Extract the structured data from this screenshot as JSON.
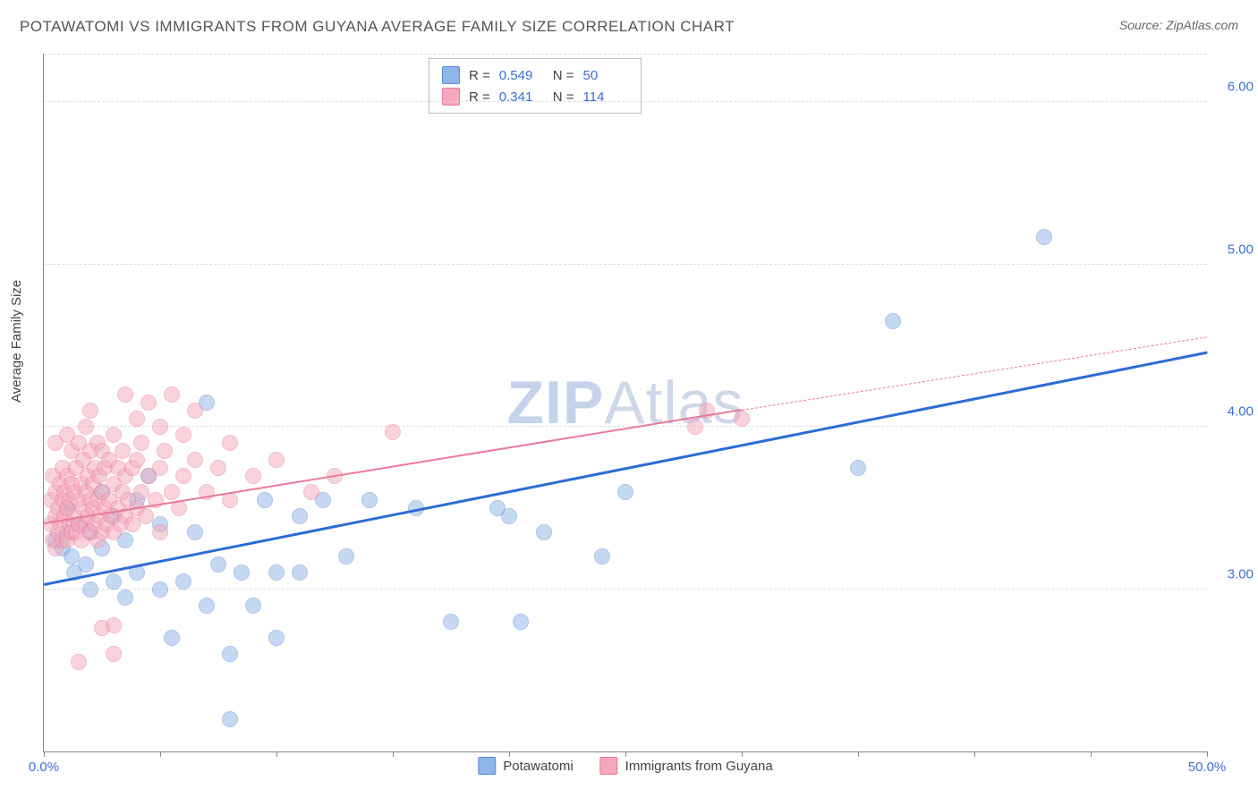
{
  "title": "POTAWATOMI VS IMMIGRANTS FROM GUYANA AVERAGE FAMILY SIZE CORRELATION CHART",
  "source_prefix": "Source: ",
  "source": "ZipAtlas.com",
  "ylabel": "Average Family Size",
  "watermark_bold": "ZIP",
  "watermark_rest": "Atlas",
  "chart": {
    "type": "scatter",
    "xlim": [
      0,
      50
    ],
    "ylim": [
      2.0,
      6.3
    ],
    "x_ticks": [
      0,
      5,
      10,
      15,
      20,
      25,
      30,
      35,
      40,
      45,
      50
    ],
    "x_tick_label_map": {
      "0": "0.0%",
      "50": "50.0%"
    },
    "y_grid": [
      3.0,
      4.0,
      5.0,
      6.0
    ],
    "y_tick_labels": [
      "3.00",
      "4.00",
      "5.00",
      "6.00"
    ],
    "background_color": "#ffffff",
    "grid_color": "#dddddd",
    "axis_label_color": "#3b6fd6",
    "point_radius": 8,
    "point_opacity": 0.5,
    "series": [
      {
        "name": "Potawatomi",
        "color_fill": "#8fb4e8",
        "color_stroke": "#5a8cd8",
        "R": "0.549",
        "N": "50",
        "trend": {
          "x1": 0,
          "y1": 3.02,
          "x2": 50,
          "y2": 4.45,
          "color": "#2d6cd6",
          "width": 2.5
        },
        "points": [
          [
            0.5,
            3.3
          ],
          [
            0.8,
            3.25
          ],
          [
            1.0,
            3.35
          ],
          [
            1.0,
            3.5
          ],
          [
            1.2,
            3.2
          ],
          [
            1.3,
            3.1
          ],
          [
            1.5,
            3.4
          ],
          [
            1.8,
            3.15
          ],
          [
            2.0,
            3.0
          ],
          [
            2.0,
            3.35
          ],
          [
            2.5,
            3.25
          ],
          [
            2.5,
            3.6
          ],
          [
            3.0,
            3.05
          ],
          [
            3.0,
            3.45
          ],
          [
            3.5,
            3.3
          ],
          [
            3.5,
            2.95
          ],
          [
            4.0,
            3.1
          ],
          [
            4.0,
            3.55
          ],
          [
            4.5,
            3.7
          ],
          [
            5.0,
            3.0
          ],
          [
            5.0,
            3.4
          ],
          [
            5.5,
            2.7
          ],
          [
            6.0,
            3.05
          ],
          [
            6.5,
            3.35
          ],
          [
            7.0,
            2.9
          ],
          [
            7.0,
            4.15
          ],
          [
            7.5,
            3.15
          ],
          [
            8.0,
            2.6
          ],
          [
            8.0,
            2.2
          ],
          [
            8.5,
            3.1
          ],
          [
            9.0,
            2.9
          ],
          [
            9.5,
            3.55
          ],
          [
            10.0,
            2.7
          ],
          [
            10.0,
            3.1
          ],
          [
            11.0,
            3.45
          ],
          [
            11.0,
            3.1
          ],
          [
            12.0,
            3.55
          ],
          [
            13.0,
            3.2
          ],
          [
            14.0,
            3.55
          ],
          [
            16.0,
            3.5
          ],
          [
            17.5,
            2.8
          ],
          [
            19.5,
            3.5
          ],
          [
            20.0,
            3.45
          ],
          [
            20.5,
            2.8
          ],
          [
            21.5,
            3.35
          ],
          [
            24.0,
            3.2
          ],
          [
            25.0,
            3.6
          ],
          [
            35.0,
            3.75
          ],
          [
            36.5,
            4.65
          ],
          [
            43.0,
            5.17
          ]
        ]
      },
      {
        "name": "Immigrants from Guyana",
        "color_fill": "#f5a8bb",
        "color_stroke": "#ea7a99",
        "R": "0.341",
        "N": "114",
        "trend_solid": {
          "x1": 0,
          "y1": 3.4,
          "x2": 30,
          "y2": 4.1,
          "color": "#ea7a99",
          "width": 2
        },
        "trend_dash": {
          "x1": 30,
          "y1": 4.1,
          "x2": 50,
          "y2": 4.55,
          "color": "#ea7a99"
        },
        "points": [
          [
            0.3,
            3.4
          ],
          [
            0.3,
            3.55
          ],
          [
            0.4,
            3.3
          ],
          [
            0.4,
            3.7
          ],
          [
            0.5,
            3.25
          ],
          [
            0.5,
            3.45
          ],
          [
            0.5,
            3.6
          ],
          [
            0.5,
            3.9
          ],
          [
            0.6,
            3.35
          ],
          [
            0.6,
            3.5
          ],
          [
            0.7,
            3.4
          ],
          [
            0.7,
            3.65
          ],
          [
            0.8,
            3.3
          ],
          [
            0.8,
            3.55
          ],
          [
            0.8,
            3.75
          ],
          [
            0.9,
            3.45
          ],
          [
            0.9,
            3.6
          ],
          [
            1.0,
            3.3
          ],
          [
            1.0,
            3.5
          ],
          [
            1.0,
            3.7
          ],
          [
            1.0,
            3.95
          ],
          [
            1.1,
            3.4
          ],
          [
            1.1,
            3.55
          ],
          [
            1.2,
            3.35
          ],
          [
            1.2,
            3.65
          ],
          [
            1.2,
            3.85
          ],
          [
            1.3,
            3.45
          ],
          [
            1.3,
            3.6
          ],
          [
            1.4,
            3.35
          ],
          [
            1.4,
            3.75
          ],
          [
            1.5,
            3.4
          ],
          [
            1.5,
            3.55
          ],
          [
            1.5,
            3.9
          ],
          [
            1.5,
            2.55
          ],
          [
            1.6,
            3.3
          ],
          [
            1.6,
            3.65
          ],
          [
            1.7,
            3.5
          ],
          [
            1.7,
            3.8
          ],
          [
            1.8,
            3.4
          ],
          [
            1.8,
            3.6
          ],
          [
            1.8,
            4.0
          ],
          [
            1.9,
            3.45
          ],
          [
            1.9,
            3.7
          ],
          [
            2.0,
            3.35
          ],
          [
            2.0,
            3.55
          ],
          [
            2.0,
            3.85
          ],
          [
            2.0,
            4.1
          ],
          [
            2.1,
            3.5
          ],
          [
            2.1,
            3.65
          ],
          [
            2.2,
            3.4
          ],
          [
            2.2,
            3.75
          ],
          [
            2.3,
            3.3
          ],
          [
            2.3,
            3.55
          ],
          [
            2.3,
            3.9
          ],
          [
            2.4,
            3.45
          ],
          [
            2.4,
            3.7
          ],
          [
            2.5,
            3.35
          ],
          [
            2.5,
            3.6
          ],
          [
            2.5,
            3.85
          ],
          [
            2.5,
            2.76
          ],
          [
            2.6,
            3.5
          ],
          [
            2.6,
            3.75
          ],
          [
            2.7,
            3.4
          ],
          [
            2.8,
            3.55
          ],
          [
            2.8,
            3.8
          ],
          [
            2.9,
            3.45
          ],
          [
            3.0,
            3.35
          ],
          [
            3.0,
            3.65
          ],
          [
            3.0,
            3.95
          ],
          [
            3.0,
            2.6
          ],
          [
            3.0,
            2.78
          ],
          [
            3.2,
            3.5
          ],
          [
            3.2,
            3.75
          ],
          [
            3.3,
            3.4
          ],
          [
            3.4,
            3.6
          ],
          [
            3.4,
            3.85
          ],
          [
            3.5,
            3.45
          ],
          [
            3.5,
            3.7
          ],
          [
            3.5,
            4.2
          ],
          [
            3.6,
            3.55
          ],
          [
            3.8,
            3.4
          ],
          [
            3.8,
            3.75
          ],
          [
            4.0,
            3.5
          ],
          [
            4.0,
            3.8
          ],
          [
            4.0,
            4.05
          ],
          [
            4.2,
            3.6
          ],
          [
            4.2,
            3.9
          ],
          [
            4.4,
            3.45
          ],
          [
            4.5,
            3.7
          ],
          [
            4.5,
            4.15
          ],
          [
            4.8,
            3.55
          ],
          [
            5.0,
            3.35
          ],
          [
            5.0,
            3.75
          ],
          [
            5.0,
            4.0
          ],
          [
            5.2,
            3.85
          ],
          [
            5.5,
            3.6
          ],
          [
            5.5,
            4.2
          ],
          [
            5.8,
            3.5
          ],
          [
            6.0,
            3.7
          ],
          [
            6.0,
            3.95
          ],
          [
            6.5,
            3.8
          ],
          [
            6.5,
            4.1
          ],
          [
            7.0,
            3.6
          ],
          [
            7.5,
            3.75
          ],
          [
            8.0,
            3.55
          ],
          [
            8.0,
            3.9
          ],
          [
            9.0,
            3.7
          ],
          [
            10.0,
            3.8
          ],
          [
            11.5,
            3.6
          ],
          [
            12.5,
            3.7
          ],
          [
            15.0,
            3.97
          ],
          [
            28.0,
            4.0
          ],
          [
            28.5,
            4.1
          ],
          [
            30.0,
            4.05
          ]
        ]
      }
    ],
    "bottom_legend": [
      {
        "label": "Potawatomi",
        "fill": "#8fb4e8",
        "stroke": "#5a8cd8"
      },
      {
        "label": "Immigrants from Guyana",
        "fill": "#f5a8bb",
        "stroke": "#ea7a99"
      }
    ]
  }
}
